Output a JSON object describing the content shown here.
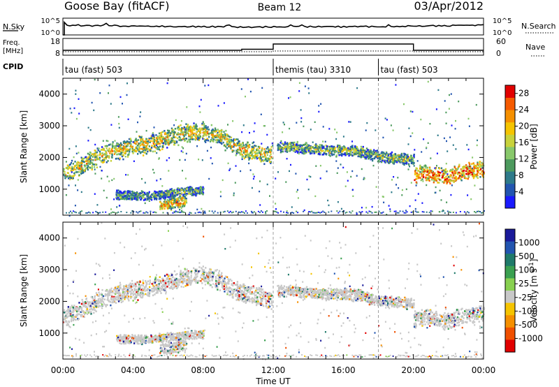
{
  "header": {
    "station": "Goose Bay (fitACF)",
    "beam": "Beam 12",
    "date": "03/Apr/2012"
  },
  "noise_panel": {
    "left_label": "N.Sky",
    "right_label": "N.Search",
    "left_ticks": [
      "10^5",
      "10^0"
    ],
    "right_ticks": [
      "10^5",
      "10^0"
    ]
  },
  "freq_panel": {
    "left_label_1": "Freq.",
    "left_label_2": "[MHz]",
    "right_label": "Nave",
    "left_ticks": [
      "18",
      "8"
    ],
    "right_ticks": [
      "60",
      "0"
    ]
  },
  "cpid": {
    "label": "CPID",
    "segments": [
      {
        "name": "tau (fast) 503",
        "start": 0,
        "end": 12
      },
      {
        "name": "themis (tau) 3310",
        "start": 12,
        "end": 18
      },
      {
        "name": "tau (fast) 503",
        "start": 18,
        "end": 24
      }
    ]
  },
  "chart_data": [
    {
      "type": "heatmap",
      "name": "power",
      "ylabel": "Slant Range [km]",
      "xlabel": "",
      "yticks": [
        "1000",
        "2000",
        "3000",
        "4000"
      ],
      "ylim": [
        180,
        4500
      ],
      "xlim": [
        0,
        24
      ],
      "colorbar": {
        "label": "Power [dB]",
        "ticks": [
          "4",
          "8",
          "12",
          "16",
          "20",
          "24",
          "28"
        ],
        "range": [
          0,
          30
        ],
        "colors": [
          "#1a1aff",
          "#2255b0",
          "#2e7a8a",
          "#4d9a5e",
          "#88c86b",
          "#c8d23c",
          "#f5c400",
          "#f59000",
          "#f55a00",
          "#e10000"
        ]
      },
      "bands": [
        {
          "t": [
            0.0,
            1.0,
            2.0,
            3.0,
            4.0,
            5.0,
            6.0,
            7.0,
            8.0,
            9.0,
            10.0,
            11.0,
            11.9
          ],
          "r": [
            1500,
            1750,
            2050,
            2250,
            2350,
            2450,
            2650,
            2800,
            2850,
            2650,
            2300,
            2200,
            2050
          ],
          "w": 250,
          "level": 16
        },
        {
          "t": [
            12.2,
            13.0,
            14.0,
            15.0,
            16.0,
            17.0,
            18.0,
            19.0,
            20.0
          ],
          "r": [
            2350,
            2350,
            2300,
            2250,
            2250,
            2200,
            2050,
            2000,
            1950
          ],
          "w": 150,
          "level": 12
        },
        {
          "t": [
            20.0,
            20.6,
            21.2,
            21.8,
            22.4,
            23.0,
            24.0
          ],
          "r": [
            1450,
            1550,
            1500,
            1400,
            1500,
            1600,
            1650
          ],
          "w": 220,
          "level": 22
        },
        {
          "t": [
            3.0,
            4.0,
            5.0,
            6.0,
            7.0,
            8.0
          ],
          "r": [
            850,
            820,
            820,
            900,
            950,
            980
          ],
          "w": 120,
          "level": 10
        },
        {
          "t": [
            5.5,
            6.0,
            6.5,
            7.0
          ],
          "r": [
            500,
            550,
            600,
            650
          ],
          "w": 150,
          "level": 18
        }
      ],
      "vlines": [
        12,
        18
      ],
      "xticks": [
        "00:00",
        "04:00",
        "08:00",
        "12:00",
        "16:00",
        "20:00",
        "00:00"
      ]
    },
    {
      "type": "heatmap",
      "name": "velocity",
      "ylabel": "Slant Range [km]",
      "xlabel": "Time UT",
      "yticks": [
        "1000",
        "2000",
        "3000",
        "4000"
      ],
      "ylim": [
        180,
        4500
      ],
      "xlim": [
        0,
        24
      ],
      "colorbar": {
        "label": "Velocity [m s^-1]",
        "ticks": [
          "1000",
          "500",
          "100",
          "25",
          "-25",
          "-100",
          "-500",
          "-1000"
        ],
        "colors": [
          "#1a1a9a",
          "#2255b0",
          "#1f7a6a",
          "#3aa050",
          "#88d050",
          "#c8c8c8",
          "#f5c400",
          "#f59000",
          "#f05000",
          "#e10000"
        ]
      },
      "dominant_color": "#c8c8c8",
      "bands": [
        {
          "t": [
            0.0,
            1.0,
            2.0,
            3.0,
            4.0,
            5.0,
            6.0,
            7.0,
            8.0,
            9.0,
            10.0,
            11.0,
            11.9
          ],
          "r": [
            1500,
            1750,
            2050,
            2250,
            2350,
            2450,
            2650,
            2800,
            2850,
            2650,
            2300,
            2200,
            2050
          ],
          "w": 250
        },
        {
          "t": [
            12.2,
            13.0,
            14.0,
            15.0,
            16.0,
            17.0,
            18.0,
            19.0,
            20.0
          ],
          "r": [
            2350,
            2350,
            2300,
            2250,
            2250,
            2200,
            2050,
            2000,
            1950
          ],
          "w": 150
        },
        {
          "t": [
            20.0,
            20.6,
            21.2,
            21.8,
            22.4,
            23.0,
            24.0
          ],
          "r": [
            1450,
            1550,
            1500,
            1400,
            1500,
            1600,
            1650
          ],
          "w": 220
        },
        {
          "t": [
            3.0,
            4.0,
            5.0,
            6.0,
            7.0,
            8.0
          ],
          "r": [
            850,
            820,
            820,
            900,
            950,
            980
          ],
          "w": 120
        },
        {
          "t": [
            5.5,
            6.0,
            6.5,
            7.0
          ],
          "r": [
            500,
            550,
            600,
            650
          ],
          "w": 150
        }
      ],
      "vlines": [
        12,
        18
      ],
      "xticks": [
        "00:00",
        "04:00",
        "08:00",
        "12:00",
        "16:00",
        "20:00",
        "00:00"
      ]
    }
  ]
}
